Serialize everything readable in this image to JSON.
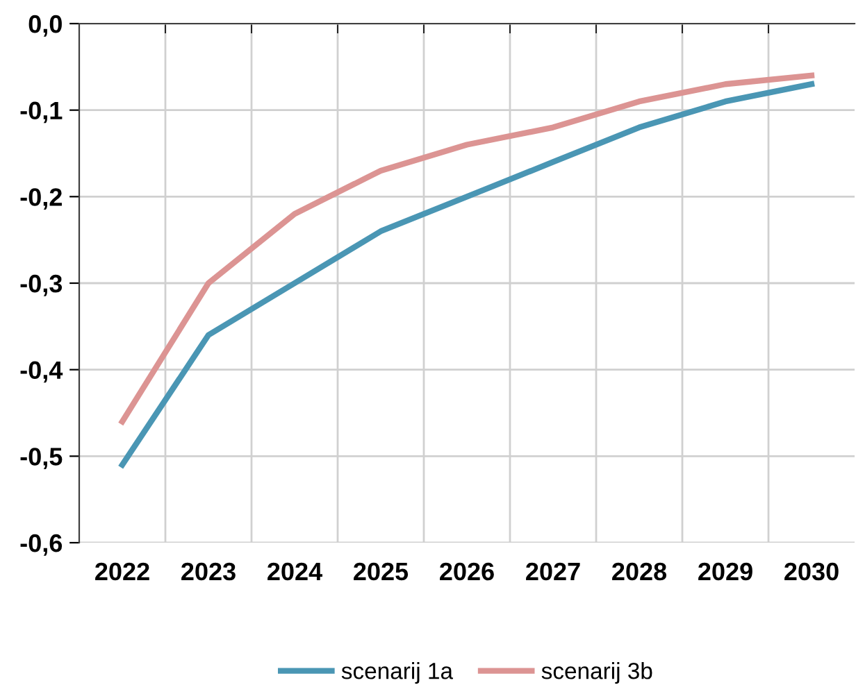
{
  "chart_data": {
    "type": "line",
    "categories": [
      "2022",
      "2023",
      "2024",
      "2025",
      "2026",
      "2027",
      "2028",
      "2029",
      "2030"
    ],
    "series": [
      {
        "name": "scenarij 1a",
        "color": "#4a96b4",
        "values": [
          -0.51,
          -0.36,
          -0.3,
          -0.24,
          -0.2,
          -0.16,
          -0.12,
          -0.09,
          -0.07
        ]
      },
      {
        "name": "scenarij 3b",
        "color": "#dc9493",
        "values": [
          -0.46,
          -0.3,
          -0.22,
          -0.17,
          -0.14,
          -0.12,
          -0.09,
          -0.07,
          -0.06
        ]
      }
    ],
    "ylim": [
      -0.6,
      0
    ],
    "yticks": [
      {
        "value": 0,
        "label": "0,0"
      },
      {
        "value": -0.1,
        "label": "-0,1"
      },
      {
        "value": -0.2,
        "label": "-0,2"
      },
      {
        "value": -0.3,
        "label": "-0,3"
      },
      {
        "value": -0.4,
        "label": "-0,4"
      },
      {
        "value": -0.5,
        "label": "-0,5"
      },
      {
        "value": -0.6,
        "label": "-0,6"
      }
    ],
    "grid": true,
    "legend": "bottom",
    "marker": "none",
    "line_style": "solid"
  }
}
